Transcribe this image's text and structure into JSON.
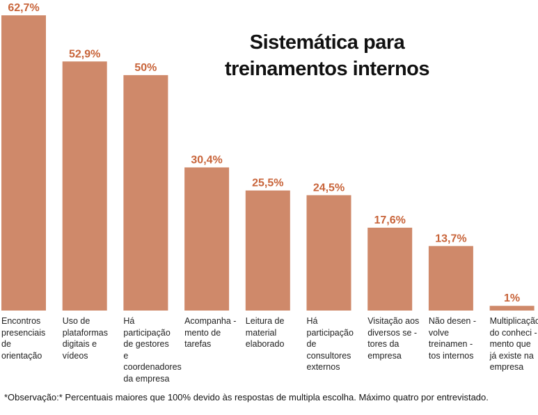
{
  "chart_data": {
    "type": "bar",
    "title": "Sistemática para treinamentos internos",
    "title_lines": [
      "Sistemática para",
      "treinamentos internos"
    ],
    "categories": [
      "Encontros\npresenciais de\norientação",
      "Uso de\nplataformas\ndigitais e\nvídeos",
      "Há participação\nde gestores\ne\ncoordenadores\nda empresa",
      "Acompanha -\nmento de\ntarefas",
      "Leitura de\nmaterial\nelaborado",
      "Há participação\nde consultores\nexternos",
      "Visitação aos\ndiversos se -\ntores da\nempresa",
      "Não desen -\nvolve\ntreinamen -\ntos internos",
      "Multiplicação\ndo conheci -\nmento que\njá existe na\nempresa"
    ],
    "values": [
      62.7,
      52.9,
      50,
      30.4,
      25.5,
      24.5,
      17.6,
      13.7,
      1
    ],
    "data_labels": [
      "62,7%",
      "52,9%",
      "50%",
      "30,4%",
      "25,5%",
      "24,5%",
      "17,6%",
      "13,7%",
      "1%"
    ],
    "unit": "%",
    "xlabel": "",
    "ylabel": "",
    "ylim": [
      0,
      62.7
    ],
    "grid": false,
    "legend": "none",
    "colors": {
      "bar": "#CF896A",
      "label": "#C8643A",
      "text": "#111111"
    }
  },
  "footnote": "*Observação:* Percentuais maiores que 100% devido às respostas de multipla escolha. Máximo quatro por entrevistado."
}
